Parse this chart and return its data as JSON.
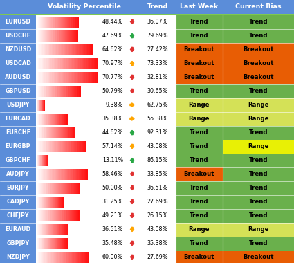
{
  "pairs": [
    "EURUSD",
    "USDCHF",
    "NZDUSD",
    "USDCAD",
    "AUDUSD",
    "GBPUSD",
    "USDJPY",
    "EURCAD",
    "EURCHF",
    "EURGBP",
    "GBPCHF",
    "AUDJPY",
    "EURJPY",
    "CADJPY",
    "CHFJPY",
    "EURAUD",
    "GBPJPY",
    "NZDJPY"
  ],
  "vol_pct": [
    48.44,
    47.69,
    64.62,
    70.97,
    70.77,
    50.79,
    9.38,
    35.38,
    44.62,
    57.14,
    13.11,
    58.46,
    50.0,
    31.25,
    49.21,
    36.51,
    35.48,
    60.0
  ],
  "trend_pct": [
    36.07,
    79.69,
    27.42,
    73.33,
    32.81,
    30.65,
    62.75,
    55.38,
    92.31,
    43.08,
    86.15,
    33.85,
    36.51,
    27.69,
    26.15,
    43.08,
    35.38,
    27.69
  ],
  "trend_arrows": [
    "down_red",
    "up_green",
    "down_red",
    "up_orange",
    "down_red",
    "down_red",
    "right_orange",
    "right_orange",
    "up_green",
    "down_orange",
    "up_green",
    "down_red",
    "down_red",
    "down_red",
    "down_red",
    "down_orange",
    "down_red",
    "down_red"
  ],
  "last_week": [
    "Trend",
    "Trend",
    "Breakout",
    "Breakout",
    "Breakout",
    "Trend",
    "Range",
    "Range",
    "Trend",
    "Trend",
    "Trend",
    "Breakout",
    "Trend",
    "Trend",
    "Trend",
    "Range",
    "Trend",
    "Breakout"
  ],
  "current_bias": [
    "Trend",
    "Trend",
    "Breakout",
    "Breakout",
    "Breakout",
    "Trend",
    "Range",
    "Range",
    "Trend",
    "Range",
    "Trend",
    "Trend",
    "Trend",
    "Trend",
    "Trend",
    "Range",
    "Trend",
    "Breakout"
  ],
  "last_week_colors": [
    "#6ab04c",
    "#6ab04c",
    "#e85d04",
    "#e85d04",
    "#e85d04",
    "#6ab04c",
    "#d4e157",
    "#d4e157",
    "#6ab04c",
    "#6ab04c",
    "#6ab04c",
    "#e85d04",
    "#6ab04c",
    "#6ab04c",
    "#6ab04c",
    "#d4e157",
    "#6ab04c",
    "#e85d04"
  ],
  "current_bias_colors": [
    "#6ab04c",
    "#6ab04c",
    "#e85d04",
    "#e85d04",
    "#e85d04",
    "#6ab04c",
    "#d4e157",
    "#d4e157",
    "#6ab04c",
    "#e8f005",
    "#6ab04c",
    "#6ab04c",
    "#6ab04c",
    "#6ab04c",
    "#6ab04c",
    "#d4e157",
    "#6ab04c",
    "#e85d04"
  ],
  "header_bg": "#5b8dd9",
  "row_label_bg": "#5b8dd9",
  "fig_w": 4.25,
  "fig_h": 3.8,
  "dpi": 100
}
